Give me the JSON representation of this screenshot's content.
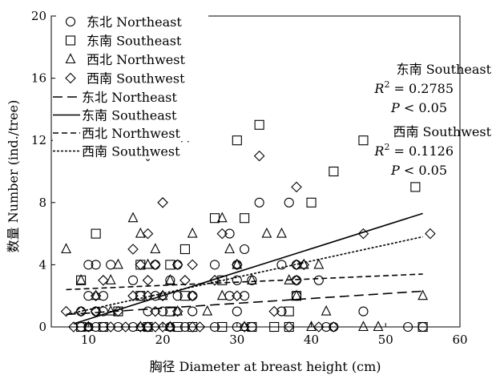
{
  "chart_data": {
    "type": "scatter",
    "xlabel": "胸径 Diameter at breast height (cm)",
    "ylabel": "数量 Number (ind./tree)",
    "xlim": [
      5,
      60
    ],
    "ylim": [
      0,
      20
    ],
    "xticks": [
      10,
      20,
      30,
      40,
      50,
      60
    ],
    "yticks": [
      0,
      4,
      8,
      12,
      16,
      20
    ],
    "grid": false,
    "legend": {
      "placement": "top-left",
      "points": [
        "东北 Northeast",
        "东南 Southeast",
        "西北 Northwest",
        "西南 Southwest"
      ],
      "lines": [
        "东北 Northeast",
        "东南 Southeast",
        "西北 Northwest",
        "西南 Southwest"
      ]
    },
    "annotations": [
      {
        "series": "东南 Southeast",
        "r2": "0.2785",
        "p": "< 0.05"
      },
      {
        "series": "西南 Southwest",
        "r2": "0.1126",
        "p": "< 0.05"
      }
    ],
    "series": [
      {
        "name": "东北 Northeast",
        "marker": "circle",
        "points": [
          [
            9,
            0
          ],
          [
            10,
            0
          ],
          [
            11,
            0
          ],
          [
            12,
            0
          ],
          [
            14,
            0
          ],
          [
            16,
            0
          ],
          [
            18,
            0
          ],
          [
            21,
            0
          ],
          [
            23,
            0
          ],
          [
            27,
            0
          ],
          [
            30,
            0
          ],
          [
            32,
            0
          ],
          [
            42,
            0
          ],
          [
            43,
            0
          ],
          [
            53,
            0
          ],
          [
            55,
            0
          ],
          [
            9,
            1
          ],
          [
            11,
            1
          ],
          [
            12,
            1
          ],
          [
            18,
            1
          ],
          [
            20,
            1
          ],
          [
            24,
            1
          ],
          [
            30,
            1
          ],
          [
            36,
            1
          ],
          [
            47,
            1
          ],
          [
            10,
            2
          ],
          [
            12,
            2
          ],
          [
            17,
            2
          ],
          [
            19,
            2
          ],
          [
            22,
            2
          ],
          [
            24,
            2
          ],
          [
            29,
            2
          ],
          [
            31,
            2
          ],
          [
            38,
            2
          ],
          [
            16,
            3
          ],
          [
            21,
            3
          ],
          [
            30,
            3
          ],
          [
            32,
            3
          ],
          [
            38,
            3
          ],
          [
            41,
            3
          ],
          [
            10,
            4
          ],
          [
            11,
            4
          ],
          [
            13,
            4
          ],
          [
            19,
            4
          ],
          [
            22,
            4
          ],
          [
            27,
            4
          ],
          [
            30,
            4
          ],
          [
            36,
            4
          ],
          [
            38,
            4
          ],
          [
            31,
            5
          ],
          [
            29,
            6
          ],
          [
            33,
            8
          ],
          [
            37,
            8
          ]
        ]
      },
      {
        "name": "东南 Southeast",
        "marker": "square",
        "points": [
          [
            9,
            0
          ],
          [
            12,
            0
          ],
          [
            18,
            0
          ],
          [
            22,
            0
          ],
          [
            24,
            0
          ],
          [
            28,
            0
          ],
          [
            32,
            0
          ],
          [
            35,
            0
          ],
          [
            37,
            0
          ],
          [
            55,
            0
          ],
          [
            14,
            1
          ],
          [
            21,
            1
          ],
          [
            37,
            1
          ],
          [
            17,
            2
          ],
          [
            23,
            2
          ],
          [
            38,
            2
          ],
          [
            9,
            3
          ],
          [
            28,
            3
          ],
          [
            17,
            4
          ],
          [
            21,
            4
          ],
          [
            23,
            5
          ],
          [
            11,
            6
          ],
          [
            27,
            7
          ],
          [
            31,
            7
          ],
          [
            40,
            8
          ],
          [
            30,
            12
          ],
          [
            33,
            13
          ],
          [
            43,
            10
          ],
          [
            47,
            12
          ],
          [
            54,
            9
          ]
        ]
      },
      {
        "name": "西北 Northwest",
        "marker": "triangle",
        "points": [
          [
            7,
            5
          ],
          [
            9,
            3
          ],
          [
            11,
            2
          ],
          [
            13,
            1
          ],
          [
            13,
            3
          ],
          [
            14,
            4
          ],
          [
            16,
            7
          ],
          [
            17,
            6
          ],
          [
            18,
            4
          ],
          [
            19,
            5
          ],
          [
            20,
            2
          ],
          [
            21,
            3
          ],
          [
            22,
            1
          ],
          [
            23,
            12
          ],
          [
            24,
            6
          ],
          [
            26,
            1
          ],
          [
            28,
            2
          ],
          [
            28,
            7
          ],
          [
            29,
            5
          ],
          [
            30,
            4
          ],
          [
            32,
            3
          ],
          [
            34,
            6
          ],
          [
            36,
            6
          ],
          [
            37,
            3
          ],
          [
            38,
            2
          ],
          [
            39,
            4
          ],
          [
            41,
            4
          ],
          [
            42,
            1
          ],
          [
            47,
            0
          ],
          [
            55,
            2
          ],
          [
            10,
            0
          ],
          [
            17,
            0
          ],
          [
            21,
            0
          ],
          [
            31,
            0
          ],
          [
            40,
            0
          ],
          [
            49,
            0
          ]
        ]
      },
      {
        "name": "西南 Southwest",
        "marker": "diamond",
        "points": [
          [
            7,
            1
          ],
          [
            8,
            0
          ],
          [
            10,
            0
          ],
          [
            13,
            0
          ],
          [
            15,
            0
          ],
          [
            17,
            0
          ],
          [
            18,
            0
          ],
          [
            19,
            0
          ],
          [
            20,
            0
          ],
          [
            21,
            0
          ],
          [
            24,
            0
          ],
          [
            25,
            0
          ],
          [
            31,
            0
          ],
          [
            37,
            0
          ],
          [
            41,
            0
          ],
          [
            43,
            0
          ],
          [
            9,
            1
          ],
          [
            11,
            1
          ],
          [
            14,
            1
          ],
          [
            19,
            1
          ],
          [
            22,
            1
          ],
          [
            35,
            1
          ],
          [
            11,
            2
          ],
          [
            16,
            2
          ],
          [
            18,
            2
          ],
          [
            20,
            2
          ],
          [
            24,
            2
          ],
          [
            30,
            2
          ],
          [
            12,
            3
          ],
          [
            18,
            3
          ],
          [
            23,
            3
          ],
          [
            27,
            3
          ],
          [
            38,
            3
          ],
          [
            17,
            4
          ],
          [
            19,
            4
          ],
          [
            22,
            4
          ],
          [
            24,
            4
          ],
          [
            30,
            4
          ],
          [
            38,
            4
          ],
          [
            39,
            4
          ],
          [
            16,
            5
          ],
          [
            18,
            6
          ],
          [
            28,
            6
          ],
          [
            20,
            8
          ],
          [
            38,
            9
          ],
          [
            33,
            11
          ],
          [
            18,
            11
          ],
          [
            24,
            16
          ],
          [
            47,
            6
          ],
          [
            56,
            6
          ]
        ]
      }
    ],
    "trendlines": [
      {
        "name": "东北 Northeast",
        "style": "long-dash",
        "from": [
          7,
          0.8
        ],
        "to": [
          55,
          2.3
        ]
      },
      {
        "name": "东南 Southeast",
        "style": "solid",
        "from": [
          8,
          0.2
        ],
        "to": [
          55,
          7.3
        ]
      },
      {
        "name": "西北 Northwest",
        "style": "medium-dash",
        "from": [
          7,
          2.4
        ],
        "to": [
          55,
          3.4
        ]
      },
      {
        "name": "西南 Southwest",
        "style": "short-dash",
        "from": [
          7,
          0.8
        ],
        "to": [
          55,
          5.8
        ]
      }
    ]
  }
}
